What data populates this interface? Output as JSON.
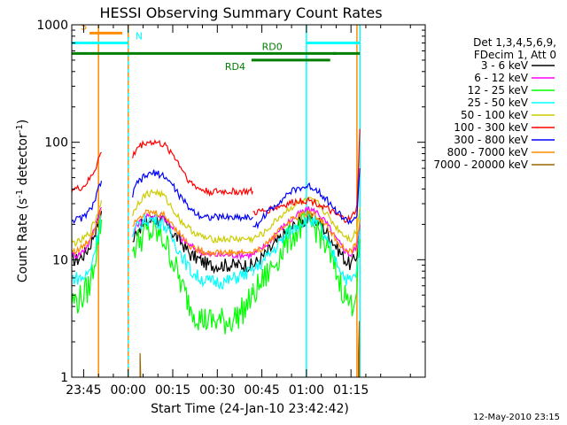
{
  "chart_data": {
    "type": "line",
    "title": "HESSI Observing Summary Count Rates",
    "xlabel": "Start Time (24-Jan-10 23:42:42)",
    "ylabel_main": "Count Rate (s",
    "ylabel_sup1": "-1",
    "ylabel_mid": " detector",
    "ylabel_sup2": "-1",
    "ylabel_end": ")",
    "y_scale": "log",
    "ylim": [
      1,
      1000
    ],
    "xlim_minutes": [
      -19,
      100
    ],
    "x_ticks": [
      {
        "t": -15,
        "label": "23:45"
      },
      {
        "t": 0,
        "label": "00:00"
      },
      {
        "t": 15,
        "label": "00:15"
      },
      {
        "t": 30,
        "label": "00:30"
      },
      {
        "t": 45,
        "label": "00:45"
      },
      {
        "t": 60,
        "label": "01:00"
      },
      {
        "t": 75,
        "label": "01:15"
      }
    ],
    "y_ticks": [
      {
        "v": 1,
        "label": "1"
      },
      {
        "v": 10,
        "label": "10"
      },
      {
        "v": 100,
        "label": "100"
      },
      {
        "v": 1000,
        "label": "1000"
      }
    ],
    "legend": {
      "position": "right",
      "header": [
        "Det 1,3,4,5,6,9,",
        "FDecim 1, Att 0"
      ]
    },
    "series": [
      {
        "name": "3 - 6 keV",
        "color": "#000000",
        "segments": [
          {
            "x": [
              -19,
              -17,
              -15,
              -13,
              -11,
              -10,
              -9
            ],
            "y": [
              10,
              10,
              11,
              13,
              18,
              22,
              26
            ]
          },
          {
            "x": [
              1.5,
              3,
              6,
              9,
              12,
              15,
              18,
              21,
              24,
              27,
              30,
              33,
              36,
              39,
              41,
              42
            ],
            "y": [
              14,
              18,
              21,
              22,
              21,
              17,
              14,
              11,
              10,
              9,
              9,
              9,
              9,
              9,
              9,
              9
            ]
          },
          {
            "x": [
              42,
              46,
              50,
              54,
              58,
              61,
              64,
              67,
              70,
              73,
              75,
              77,
              78
            ],
            "y": [
              9,
              11,
              14,
              18,
              21,
              22,
              21,
              17,
              13,
              10,
              9,
              11,
              18
            ]
          }
        ]
      },
      {
        "name": "6 - 12 keV",
        "color": "#ff00ff",
        "segments": [
          {
            "x": [
              -19,
              -17,
              -15,
              -13,
              -11,
              -10,
              -9
            ],
            "y": [
              11,
              11,
              12,
              14,
              20,
              24,
              28
            ]
          },
          {
            "x": [
              1.5,
              3,
              6,
              9,
              12,
              15,
              18,
              21,
              24,
              27,
              30,
              33,
              36,
              39,
              41,
              42
            ],
            "y": [
              16,
              20,
              23,
              24,
              23,
              19,
              15,
              13,
              12,
              11,
              11,
              11,
              11,
              11,
              11,
              11
            ]
          },
          {
            "x": [
              42,
              46,
              50,
              54,
              58,
              61,
              64,
              67,
              70,
              73,
              75,
              77,
              78
            ],
            "y": [
              11,
              13,
              17,
              21,
              25,
              27,
              25,
              20,
              15,
              12,
              11,
              13,
              20
            ]
          }
        ]
      },
      {
        "name": "12 - 25 keV",
        "color": "#00ff00",
        "segments": [
          {
            "x": [
              -19,
              -17,
              -15,
              -13,
              -11,
              -10,
              -9
            ],
            "y": [
              4.5,
              4.5,
              5,
              6,
              11,
              16,
              22
            ]
          },
          {
            "x": [
              1.5,
              3,
              6,
              9,
              12,
              15,
              18,
              21,
              24,
              27,
              30,
              33,
              36,
              39,
              41,
              42
            ],
            "y": [
              12,
              14,
              17,
              17,
              15,
              10,
              6,
              4,
              3.2,
              3,
              3,
              3,
              3.2,
              3.8,
              4.5,
              5
            ]
          },
          {
            "x": [
              42,
              46,
              50,
              54,
              58,
              61,
              64,
              67,
              70,
              73,
              75,
              77,
              78
            ],
            "y": [
              5,
              7,
              10,
              15,
              19,
              20,
              18,
              12,
              8,
              5,
              4,
              6,
              15
            ]
          }
        ]
      },
      {
        "name": "25 - 50 keV",
        "color": "#00ffff",
        "segments": [
          {
            "x": [
              -19,
              -17,
              -15,
              -13,
              -11,
              -10,
              -9
            ],
            "y": [
              7,
              7,
              7,
              8,
              13,
              18,
              24
            ]
          },
          {
            "x": [
              1.5,
              3,
              6,
              9,
              12,
              15,
              18,
              21,
              24,
              27,
              30,
              33,
              36,
              39,
              41,
              42
            ],
            "y": [
              16,
              19,
              22,
              22,
              20,
              15,
              11,
              8,
              7,
              6.5,
              6.5,
              6.5,
              7,
              7.5,
              7.8,
              8
            ]
          },
          {
            "x": [
              42,
              46,
              50,
              54,
              58,
              61,
              64,
              67,
              70,
              73,
              75,
              77,
              78
            ],
            "y": [
              8,
              10,
              13,
              17,
              21,
              22,
              20,
              14,
              10,
              7,
              6.5,
              8,
              18
            ]
          }
        ]
      },
      {
        "name": "50 - 100 keV",
        "color": "#cccc00",
        "segments": [
          {
            "x": [
              -19,
              -17,
              -15,
              -13,
              -11,
              -10,
              -9
            ],
            "y": [
              14,
              14,
              15,
              17,
              22,
              27,
              32
            ]
          },
          {
            "x": [
              1.5,
              3,
              6,
              9,
              12,
              15,
              18,
              21,
              24,
              27,
              30,
              33,
              36,
              39,
              41,
              42
            ],
            "y": [
              24,
              30,
              36,
              38,
              35,
              27,
              21,
              18,
              16,
              15,
              15,
              15,
              15,
              15,
              15,
              15
            ]
          },
          {
            "x": [
              42,
              46,
              50,
              54,
              58,
              61,
              64,
              67,
              70,
              73,
              75,
              77,
              78
            ],
            "y": [
              15,
              17,
              22,
              27,
              31,
              32,
              30,
              24,
              19,
              16,
              15,
              18,
              28
            ]
          }
        ]
      },
      {
        "name": "100 - 300 keV",
        "color": "#ff0000",
        "segments": [
          {
            "x": [
              -19,
              -17,
              -15,
              -13,
              -11,
              -10,
              -9
            ],
            "y": [
              40,
              40,
              42,
              48,
              60,
              72,
              82
            ]
          },
          {
            "x": [
              1.5,
              3,
              6,
              9,
              12,
              15,
              18,
              21,
              24,
              27,
              30,
              33,
              36,
              39,
              41,
              42
            ],
            "y": [
              75,
              90,
              100,
              100,
              95,
              80,
              60,
              45,
              40,
              38,
              38,
              38,
              38,
              38,
              38,
              38
            ]
          },
          {
            "x": [
              42,
              46,
              50,
              54,
              58,
              61,
              64,
              67,
              70,
              73,
              75,
              77,
              78
            ],
            "y": [
              25,
              26,
              28,
              30,
              32,
              32,
              30,
              27,
              24,
              22,
              22,
              28,
              130
            ]
          }
        ]
      },
      {
        "name": "300 - 800 keV",
        "color": "#0000ff",
        "segments": [
          {
            "x": [
              -19,
              -17,
              -15,
              -13,
              -11,
              -10,
              -9
            ],
            "y": [
              22,
              22,
              23,
              26,
              33,
              40,
              47
            ]
          },
          {
            "x": [
              1.5,
              3,
              6,
              9,
              12,
              15,
              18,
              21,
              24,
              27,
              30,
              33,
              36,
              39,
              41,
              42
            ],
            "y": [
              35,
              45,
              52,
              55,
              52,
              43,
              33,
              27,
              24,
              23,
              23,
              23,
              23,
              23,
              23,
              23
            ]
          },
          {
            "x": [
              42,
              46,
              50,
              54,
              58,
              61,
              64,
              67,
              70,
              73,
              75,
              77,
              78
            ],
            "y": [
              18,
              24,
              30,
              37,
              41,
              42,
              39,
              32,
              26,
              22,
              21,
              24,
              60
            ]
          }
        ]
      },
      {
        "name": "800 - 7000 keV",
        "color": "#ff8c00",
        "segments": [
          {
            "x": [
              -19,
              -17,
              -15,
              -13,
              -11,
              -10,
              -9
            ],
            "y": [
              12,
              12,
              13,
              15,
              19,
              23,
              27
            ]
          },
          {
            "x": [
              1.5,
              3,
              6,
              9,
              12,
              15,
              18,
              21,
              24,
              27,
              30,
              33,
              36,
              39,
              41,
              42
            ],
            "y": [
              20,
              23,
              25,
              25,
              24,
              20,
              16,
              13,
              12,
              11.5,
              11.5,
              11.5,
              11.5,
              11.5,
              11.5,
              11.5
            ]
          },
          {
            "x": [
              42,
              46,
              50,
              54,
              58,
              61,
              64,
              67,
              70,
              73,
              75,
              77,
              78
            ],
            "y": [
              11.5,
              13,
              17,
              21,
              24,
              25,
              23,
              19,
              15,
              12,
              11.5,
              14,
              22
            ]
          }
        ]
      },
      {
        "name": "7000 - 20000 keV",
        "color": "#996600",
        "segments": [
          {
            "x": [
              4,
              4,
              4.2
            ],
            "y": [
              1,
              1.6,
              1
            ]
          },
          {
            "x": [
              77.5,
              77.5,
              77.8,
              77.8
            ],
            "y": [
              1,
              1.6,
              3,
              1
            ]
          }
        ]
      }
    ],
    "annotations": {
      "segments": [
        {
          "label": "S",
          "color": "#ff8c00",
          "x1": -13,
          "x2": -2,
          "v": 850
        },
        {
          "label": "N",
          "color": "#00ffff",
          "x1": -19,
          "x2": 0,
          "v": 700
        },
        {
          "label": "",
          "color": "#00ffff",
          "x1": 60,
          "x2": 78,
          "v": 700
        },
        {
          "label": "RD0",
          "color": "#008000",
          "x1": -19,
          "x2": 70,
          "v": 570
        },
        {
          "label": "RD4",
          "color": "#008000",
          "x1": 41.5,
          "x2": 68,
          "v": 500
        },
        {
          "label": "",
          "color": "#008000",
          "x1": 69,
          "x2": 78,
          "v": 570
        }
      ],
      "verticals": [
        {
          "x": -10,
          "color": "#ff8c00",
          "style": "solid"
        },
        {
          "x": 0,
          "color": "#00ffff",
          "style": "solid"
        },
        {
          "x": 0,
          "color": "#ff8c00",
          "style": "dashed"
        },
        {
          "x": 60,
          "color": "#00ffff",
          "style": "solid"
        },
        {
          "x": 77,
          "color": "#ff8c00",
          "style": "solid"
        },
        {
          "x": 78,
          "color": "#ff8c00",
          "style": "dashed"
        },
        {
          "x": 78,
          "color": "#00ffff",
          "style": "solid"
        }
      ]
    },
    "footer_date": "12-May-2010 23:15"
  }
}
